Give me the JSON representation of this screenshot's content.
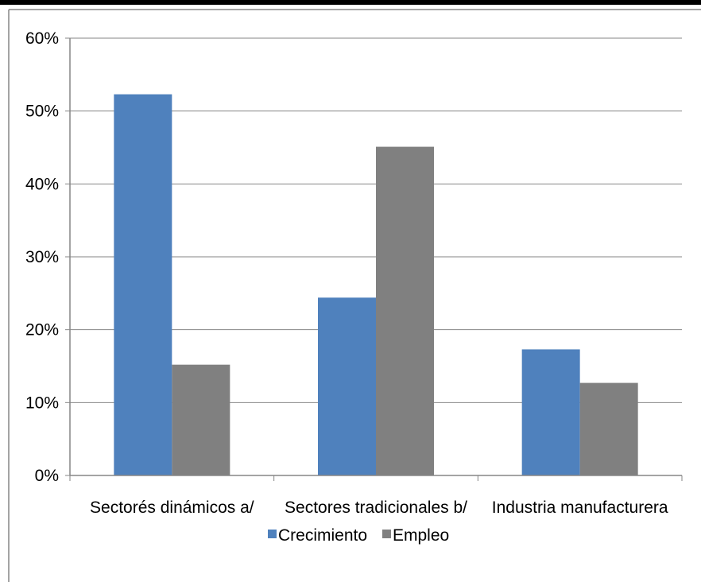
{
  "chart_data": {
    "type": "bar",
    "categories": [
      "Sectorés dinámicos a/",
      "Sectores tradicionales b/",
      "Industria manufacturera"
    ],
    "series": [
      {
        "name": "Crecimiento",
        "values": [
          52.3,
          24.4,
          17.3
        ],
        "color": "#4F81BD"
      },
      {
        "name": "Empleo",
        "values": [
          15.2,
          45.1,
          12.7
        ],
        "color": "#808080"
      }
    ],
    "ylim": [
      0,
      60
    ],
    "yticks": [
      0,
      10,
      20,
      30,
      40,
      50,
      60
    ],
    "ytick_labels": [
      "0%",
      "10%",
      "20%",
      "30%",
      "40%",
      "50%",
      "60%"
    ],
    "grid": true,
    "legend": "bottom",
    "title": "",
    "xlabel": "",
    "ylabel": ""
  }
}
